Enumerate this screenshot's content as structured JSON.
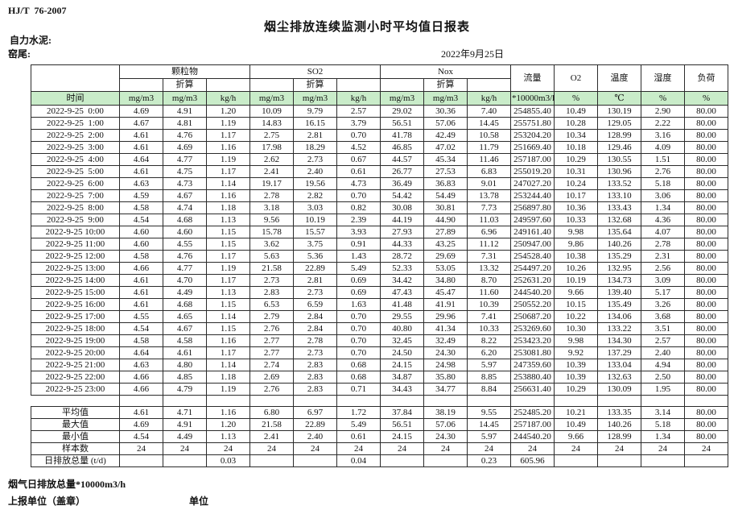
{
  "page": {
    "standard": "HJ/T  76-2007",
    "title": "烟尘排放连续监测小时平均值日报表",
    "company": "自力水泥:",
    "location": "窑尾:",
    "date": "2022年9月25日"
  },
  "table": {
    "time_label": "时间",
    "converted_label": "折算",
    "col_groups": [
      {
        "label": "颗粒物"
      },
      {
        "label": "SO2"
      },
      {
        "label": "Nox"
      }
    ],
    "single_cols": [
      "流量",
      "O2",
      "温度",
      "湿度",
      "负荷"
    ],
    "units": [
      "mg/m3",
      "mg/m3",
      "kg/h",
      "mg/m3",
      "mg/m3",
      "kg/h",
      "mg/m3",
      "mg/m3",
      "kg/h",
      "*10000m3/h",
      "%",
      "℃",
      "%",
      "%"
    ],
    "rows": [
      {
        "time": "2022-9-25  0:00",
        "values": [
          "4.69",
          "4.91",
          "1.20",
          "10.09",
          "9.79",
          "2.57",
          "29.02",
          "30.36",
          "7.40",
          "254855.40",
          "10.49",
          "130.19",
          "2.90",
          "80.00"
        ]
      },
      {
        "time": "2022-9-25  1:00",
        "values": [
          "4.67",
          "4.81",
          "1.19",
          "14.83",
          "16.15",
          "3.79",
          "56.51",
          "57.06",
          "14.45",
          "255751.80",
          "10.28",
          "129.05",
          "2.22",
          "80.00"
        ]
      },
      {
        "time": "2022-9-25  2:00",
        "values": [
          "4.61",
          "4.76",
          "1.17",
          "2.75",
          "2.81",
          "0.70",
          "41.78",
          "42.49",
          "10.58",
          "253204.20",
          "10.34",
          "128.99",
          "3.16",
          "80.00"
        ]
      },
      {
        "time": "2022-9-25  3:00",
        "values": [
          "4.61",
          "4.69",
          "1.16",
          "17.98",
          "18.29",
          "4.52",
          "46.85",
          "47.02",
          "11.79",
          "251669.40",
          "10.18",
          "129.46",
          "4.09",
          "80.00"
        ]
      },
      {
        "time": "2022-9-25  4:00",
        "values": [
          "4.64",
          "4.77",
          "1.19",
          "2.62",
          "2.73",
          "0.67",
          "44.57",
          "45.34",
          "11.46",
          "257187.00",
          "10.29",
          "130.55",
          "1.51",
          "80.00"
        ]
      },
      {
        "time": "2022-9-25  5:00",
        "values": [
          "4.61",
          "4.75",
          "1.17",
          "2.41",
          "2.40",
          "0.61",
          "26.77",
          "27.53",
          "6.83",
          "255019.20",
          "10.31",
          "130.96",
          "2.76",
          "80.00"
        ]
      },
      {
        "time": "2022-9-25  6:00",
        "values": [
          "4.63",
          "4.73",
          "1.14",
          "19.17",
          "19.56",
          "4.73",
          "36.49",
          "36.83",
          "9.01",
          "247027.20",
          "10.24",
          "133.52",
          "5.18",
          "80.00"
        ]
      },
      {
        "time": "2022-9-25  7:00",
        "values": [
          "4.59",
          "4.67",
          "1.16",
          "2.78",
          "2.82",
          "0.70",
          "54.42",
          "54.49",
          "13.78",
          "253244.40",
          "10.17",
          "133.10",
          "3.06",
          "80.00"
        ]
      },
      {
        "time": "2022-9-25  8:00",
        "values": [
          "4.58",
          "4.74",
          "1.18",
          "3.18",
          "3.03",
          "0.82",
          "30.08",
          "30.81",
          "7.73",
          "256897.80",
          "10.36",
          "133.43",
          "1.34",
          "80.00"
        ]
      },
      {
        "time": "2022-9-25  9:00",
        "values": [
          "4.54",
          "4.68",
          "1.13",
          "9.56",
          "10.19",
          "2.39",
          "44.19",
          "44.90",
          "11.03",
          "249597.60",
          "10.33",
          "132.68",
          "4.36",
          "80.00"
        ]
      },
      {
        "time": "2022-9-25 10:00",
        "values": [
          "4.60",
          "4.60",
          "1.15",
          "15.78",
          "15.57",
          "3.93",
          "27.93",
          "27.89",
          "6.96",
          "249161.40",
          "9.98",
          "135.64",
          "4.07",
          "80.00"
        ]
      },
      {
        "time": "2022-9-25 11:00",
        "values": [
          "4.60",
          "4.55",
          "1.15",
          "3.62",
          "3.75",
          "0.91",
          "44.33",
          "43.25",
          "11.12",
          "250947.00",
          "9.86",
          "140.26",
          "2.78",
          "80.00"
        ]
      },
      {
        "time": "2022-9-25 12:00",
        "values": [
          "4.58",
          "4.76",
          "1.17",
          "5.63",
          "5.36",
          "1.43",
          "28.72",
          "29.69",
          "7.31",
          "254528.40",
          "10.38",
          "135.29",
          "2.31",
          "80.00"
        ]
      },
      {
        "time": "2022-9-25 13:00",
        "values": [
          "4.66",
          "4.77",
          "1.19",
          "21.58",
          "22.89",
          "5.49",
          "52.33",
          "53.05",
          "13.32",
          "254497.20",
          "10.26",
          "132.95",
          "2.56",
          "80.00"
        ]
      },
      {
        "time": "2022-9-25 14:00",
        "values": [
          "4.61",
          "4.70",
          "1.17",
          "2.73",
          "2.81",
          "0.69",
          "34.42",
          "34.80",
          "8.70",
          "252631.20",
          "10.19",
          "134.73",
          "3.09",
          "80.00"
        ]
      },
      {
        "time": "2022-9-25 15:00",
        "values": [
          "4.61",
          "4.49",
          "1.13",
          "2.83",
          "2.73",
          "0.69",
          "47.43",
          "45.47",
          "11.60",
          "244540.20",
          "9.66",
          "139.40",
          "5.17",
          "80.00"
        ]
      },
      {
        "time": "2022-9-25 16:00",
        "values": [
          "4.61",
          "4.68",
          "1.15",
          "6.53",
          "6.59",
          "1.63",
          "41.48",
          "41.91",
          "10.39",
          "250552.20",
          "10.15",
          "135.49",
          "3.26",
          "80.00"
        ]
      },
      {
        "time": "2022-9-25 17:00",
        "values": [
          "4.55",
          "4.65",
          "1.14",
          "2.79",
          "2.84",
          "0.70",
          "29.55",
          "29.96",
          "7.41",
          "250687.20",
          "10.22",
          "134.06",
          "3.68",
          "80.00"
        ]
      },
      {
        "time": "2022-9-25 18:00",
        "values": [
          "4.54",
          "4.67",
          "1.15",
          "2.76",
          "2.84",
          "0.70",
          "40.80",
          "41.34",
          "10.33",
          "253269.60",
          "10.30",
          "133.22",
          "3.51",
          "80.00"
        ]
      },
      {
        "time": "2022-9-25 19:00",
        "values": [
          "4.58",
          "4.58",
          "1.16",
          "2.77",
          "2.78",
          "0.70",
          "32.45",
          "32.49",
          "8.22",
          "253423.20",
          "9.98",
          "134.30",
          "2.57",
          "80.00"
        ]
      },
      {
        "time": "2022-9-25 20:00",
        "values": [
          "4.64",
          "4.61",
          "1.17",
          "2.77",
          "2.73",
          "0.70",
          "24.50",
          "24.30",
          "6.20",
          "253081.80",
          "9.92",
          "137.29",
          "2.40",
          "80.00"
        ]
      },
      {
        "time": "2022-9-25 21:00",
        "values": [
          "4.63",
          "4.80",
          "1.14",
          "2.74",
          "2.83",
          "0.68",
          "24.15",
          "24.98",
          "5.97",
          "247359.60",
          "10.39",
          "133.04",
          "4.94",
          "80.00"
        ]
      },
      {
        "time": "2022-9-25 22:00",
        "values": [
          "4.66",
          "4.85",
          "1.18",
          "2.69",
          "2.83",
          "0.68",
          "34.87",
          "35.80",
          "8.85",
          "253880.40",
          "10.39",
          "132.63",
          "2.50",
          "80.00"
        ]
      },
      {
        "time": "2022-9-25 23:00",
        "values": [
          "4.66",
          "4.79",
          "1.19",
          "2.76",
          "2.83",
          "0.71",
          "34.43",
          "34.77",
          "8.84",
          "256631.40",
          "10.29",
          "130.09",
          "1.95",
          "80.00"
        ]
      }
    ],
    "summary_rows": [
      {
        "label": "平均值",
        "values": [
          "4.61",
          "4.71",
          "1.16",
          "6.80",
          "6.97",
          "1.72",
          "37.84",
          "38.19",
          "9.55",
          "252485.20",
          "10.21",
          "133.35",
          "3.14",
          "80.00"
        ]
      },
      {
        "label": "最大值",
        "values": [
          "4.69",
          "4.91",
          "1.20",
          "21.58",
          "22.89",
          "5.49",
          "56.51",
          "57.06",
          "14.45",
          "257187.00",
          "10.49",
          "140.26",
          "5.18",
          "80.00"
        ]
      },
      {
        "label": "最小值",
        "values": [
          "4.54",
          "4.49",
          "1.13",
          "2.41",
          "2.40",
          "0.61",
          "24.15",
          "24.30",
          "5.97",
          "244540.20",
          "9.66",
          "128.99",
          "1.34",
          "80.00"
        ]
      },
      {
        "label": "样本数",
        "values": [
          "24",
          "24",
          "24",
          "24",
          "24",
          "24",
          "24",
          "24",
          "24",
          "24",
          "24",
          "24",
          "24",
          "24"
        ]
      }
    ],
    "daily_total_row": {
      "label": "日排放总量 (t/d)",
      "values": [
        "",
        "",
        "0.03",
        "",
        "",
        "0.04",
        "",
        "",
        "0.23",
        "605.96",
        "",
        "",
        "",
        ""
      ]
    }
  },
  "footer": {
    "flue_total": "烟气日排放总量*10000m3/h",
    "report_unit": "上报单位（盖章）",
    "unit": "单位"
  },
  "colors": {
    "units_row_bg": "#c9ecc9",
    "border": "#2b2b2b"
  }
}
